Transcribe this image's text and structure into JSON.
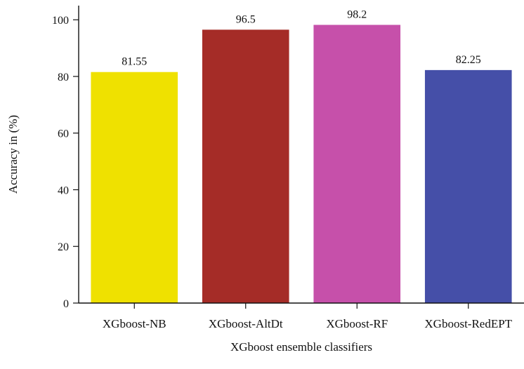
{
  "chart_data": {
    "type": "bar",
    "title": "",
    "xlabel": "XGboost ensemble classifiers",
    "ylabel": "Accuracy in (%)",
    "categories": [
      "XGboost-NB",
      "XGboost-AltDt",
      "XGboost-RF",
      "XGboost-RedEPT"
    ],
    "values": [
      81.55,
      96.5,
      98.2,
      82.25
    ],
    "data_labels": [
      "81.55",
      "96.5",
      "98.2",
      "82.25"
    ],
    "colors": [
      "#efe100",
      "#a52c27",
      "#c650aa",
      "#454fa8"
    ],
    "ylim": [
      0,
      105
    ],
    "yticks": [
      0,
      20,
      40,
      60,
      80,
      100
    ],
    "ytick_labels": [
      "0",
      "20",
      "40",
      "60",
      "80",
      "100"
    ],
    "grid": false,
    "legend": "none"
  }
}
